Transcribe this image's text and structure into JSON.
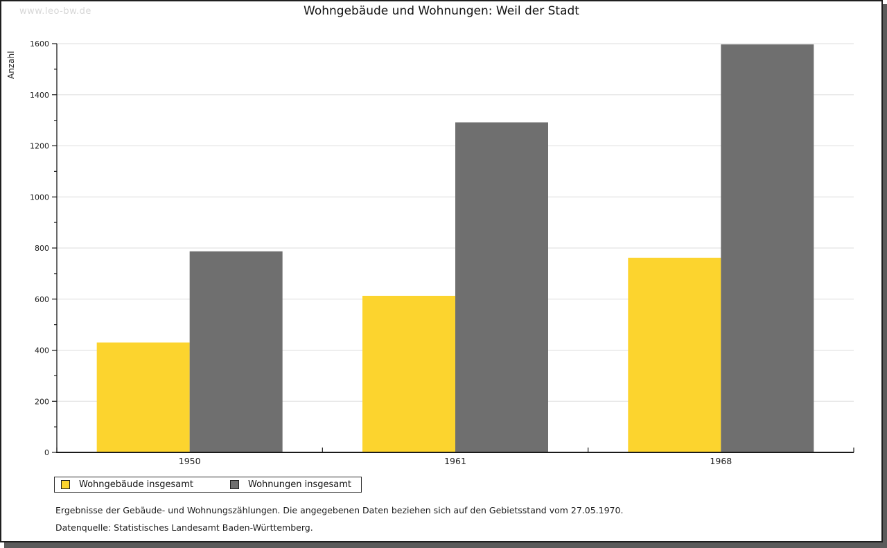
{
  "watermark": "www.leo-bw.de",
  "title": "Wohngebäude und Wohnungen: Weil der Stadt",
  "chart_data": {
    "type": "bar",
    "title": "Wohngebäude und Wohnungen: Weil der Stadt",
    "xlabel": "",
    "ylabel": "Anzahl",
    "categories": [
      "1950",
      "1961",
      "1968"
    ],
    "series": [
      {
        "name": "Wohngebäude insgesamt",
        "color": "#fcd42e",
        "values": [
          430,
          613,
          762
        ]
      },
      {
        "name": "Wohnungen insgesamt",
        "color": "#6f6f6f",
        "values": [
          787,
          1292,
          1597
        ]
      }
    ],
    "ylim": [
      0,
      1600
    ],
    "yticks": [
      0,
      200,
      400,
      600,
      800,
      1000,
      1200,
      1400,
      1600
    ],
    "minor_tick_step": 100,
    "grid": "horizontal",
    "legend_position": "bottom-left"
  },
  "footnotes": {
    "line1": "Ergebnisse der Gebäude- und Wohnungszählungen. Die angegebenen Daten beziehen sich auf den Gebietsstand vom 27.05.1970.",
    "line2": "Datenquelle: Statistisches Landesamt Baden-Württemberg."
  },
  "colors": {
    "bar_yellow": "#fcd42e",
    "bar_gray": "#6f6f6f",
    "gridline": "#e4e4e4",
    "axis": "#1a1a1a",
    "watermark": "#d7d7d7",
    "frame_shadow": "#5b5b5b"
  }
}
